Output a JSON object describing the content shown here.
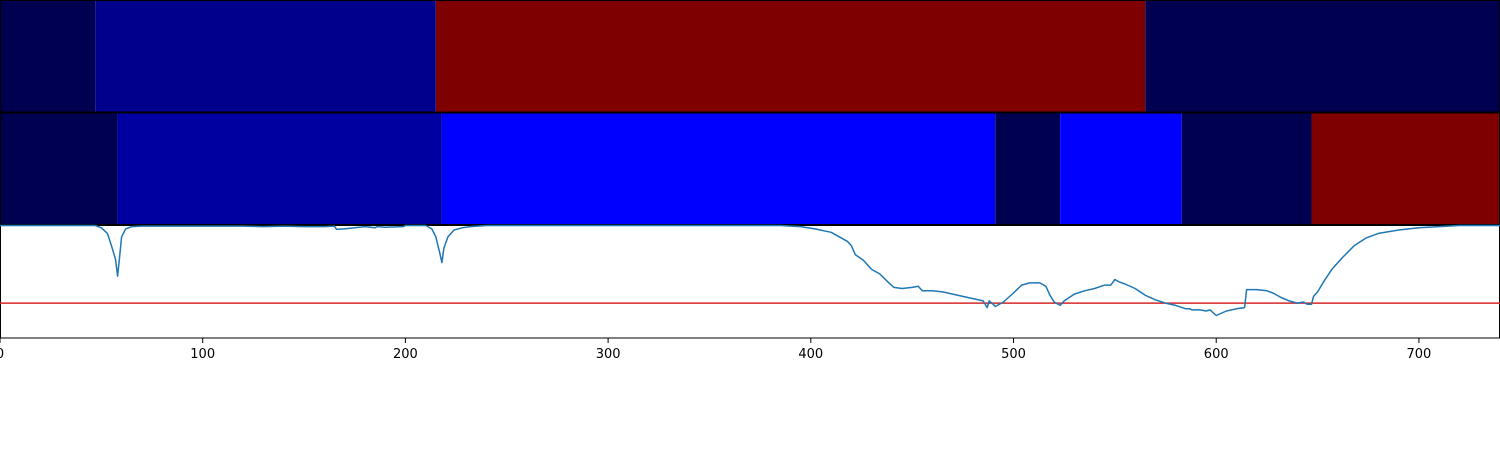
{
  "chart_data": {
    "type": "segmentation-strips-with-line",
    "x_axis": {
      "xlim": [
        0,
        740
      ],
      "ticks": [
        0,
        100,
        200,
        300,
        400,
        500,
        600,
        700
      ],
      "tick_labels": [
        "0",
        "100",
        "200",
        "300",
        "400",
        "500",
        "600",
        "700"
      ]
    },
    "strips": [
      {
        "segments": [
          {
            "start": 0,
            "end": 47,
            "color": "#000050"
          },
          {
            "start": 47,
            "end": 215,
            "color": "#00008c"
          },
          {
            "start": 215,
            "end": 565,
            "color": "#7f0000"
          },
          {
            "start": 565,
            "end": 740,
            "color": "#000050"
          }
        ]
      },
      {
        "segments": [
          {
            "start": 0,
            "end": 58,
            "color": "#000050"
          },
          {
            "start": 58,
            "end": 218,
            "color": "#0000a0"
          },
          {
            "start": 218,
            "end": 491,
            "color": "#0000ff"
          },
          {
            "start": 491,
            "end": 523,
            "color": "#000050"
          },
          {
            "start": 523,
            "end": 583,
            "color": "#0000ff"
          },
          {
            "start": 583,
            "end": 647,
            "color": "#000050"
          },
          {
            "start": 647,
            "end": 740,
            "color": "#7f0000"
          }
        ]
      }
    ],
    "line": {
      "color": "#1f77b4",
      "ylim": [
        0,
        1
      ],
      "x": [
        0,
        47,
        50,
        53,
        55,
        57,
        58,
        59,
        60,
        62,
        65,
        70,
        80,
        100,
        120,
        130,
        140,
        150,
        160,
        165,
        166,
        170,
        180,
        185,
        186,
        190,
        199,
        200,
        210,
        213,
        215,
        217,
        218,
        219,
        221,
        224,
        228,
        232,
        240,
        300,
        385,
        395,
        402,
        410,
        418,
        420,
        422,
        426,
        430,
        434,
        438,
        441,
        445,
        450,
        453,
        455,
        456,
        460,
        465,
        470,
        475,
        480,
        485,
        487,
        488,
        490,
        491,
        495,
        500,
        504,
        508,
        513,
        516,
        518,
        520,
        523,
        525,
        530,
        535,
        540,
        545,
        548,
        550,
        552,
        555,
        560,
        565,
        570,
        575,
        580,
        585,
        587,
        588,
        592,
        595,
        597,
        600,
        605,
        610,
        614,
        615,
        620,
        625,
        628,
        632,
        636,
        640,
        643,
        645,
        647,
        648,
        650,
        653,
        657,
        662,
        668,
        674,
        680,
        690,
        700,
        710,
        720,
        730,
        740
      ],
      "y": [
        1.0,
        1.0,
        0.98,
        0.93,
        0.82,
        0.7,
        0.55,
        0.72,
        0.9,
        0.97,
        0.99,
        0.995,
        0.995,
        0.995,
        0.995,
        0.99,
        0.995,
        0.99,
        0.99,
        0.995,
        0.965,
        0.97,
        0.99,
        0.98,
        0.99,
        0.985,
        0.99,
        1.0,
        1.0,
        0.97,
        0.9,
        0.75,
        0.67,
        0.8,
        0.9,
        0.96,
        0.98,
        0.99,
        1.0,
        1.0,
        1.0,
        0.99,
        0.97,
        0.94,
        0.86,
        0.82,
        0.74,
        0.69,
        0.61,
        0.57,
        0.5,
        0.45,
        0.44,
        0.45,
        0.46,
        0.42,
        0.42,
        0.42,
        0.41,
        0.39,
        0.37,
        0.35,
        0.33,
        0.27,
        0.33,
        0.3,
        0.28,
        0.32,
        0.4,
        0.47,
        0.49,
        0.49,
        0.46,
        0.38,
        0.32,
        0.29,
        0.33,
        0.39,
        0.42,
        0.44,
        0.47,
        0.47,
        0.52,
        0.5,
        0.48,
        0.44,
        0.38,
        0.34,
        0.31,
        0.29,
        0.26,
        0.26,
        0.25,
        0.25,
        0.24,
        0.25,
        0.2,
        0.24,
        0.26,
        0.27,
        0.43,
        0.43,
        0.42,
        0.4,
        0.36,
        0.33,
        0.31,
        0.32,
        0.3,
        0.3,
        0.37,
        0.41,
        0.5,
        0.61,
        0.71,
        0.82,
        0.89,
        0.93,
        0.96,
        0.98,
        0.99,
        1.0,
        1.0,
        1.0
      ]
    },
    "threshold": {
      "y": 0.31,
      "color": "#d62728"
    }
  }
}
